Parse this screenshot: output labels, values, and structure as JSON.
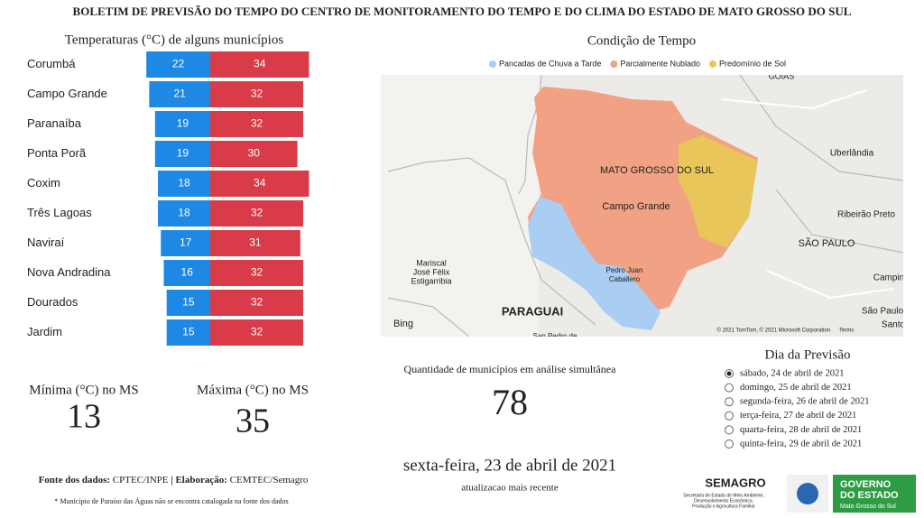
{
  "header": {
    "title": "BOLETIM DE PREVISÃO DO TEMPO DO CENTRO DE MONITORAMENTO DO TEMPO E DO CLIMA DO ESTADO DE MATO GROSSO DO SUL"
  },
  "chart_data": {
    "type": "butterfly-bar",
    "title": "Temperaturas (°C) de alguns municípios",
    "categories": [
      "Corumbá",
      "Campo Grande",
      "Paranaíba",
      "Ponta Porã",
      "Coxim",
      "Três Lagoas",
      "Naviraí",
      "Nova Andradina",
      "Dourados",
      "Jardim"
    ],
    "series": [
      {
        "color": "#1e88e5",
        "values": [
          22,
          21,
          19,
          19,
          18,
          18,
          17,
          16,
          15,
          15
        ]
      },
      {
        "color": "#d93b48",
        "values": [
          34,
          32,
          32,
          30,
          34,
          32,
          31,
          32,
          32,
          32
        ]
      }
    ]
  },
  "summary": {
    "min_label": "Mínima (°C) no MS",
    "min_value": 13,
    "max_label": "Máxima (°C) no MS",
    "max_value": 35
  },
  "map": {
    "title": "Condição de Tempo",
    "legend": [
      {
        "label": "Pancadas de Chuva a Tarde",
        "color": "#a9cdf3"
      },
      {
        "label": "Parcialmente Nublado",
        "color": "#f1a285"
      },
      {
        "label": "Predomínio de Sol",
        "color": "#e8c65a"
      }
    ],
    "labels": [
      "GOIÁS",
      "Uberlândia",
      "MATO GROSSO DO SUL",
      "Campo Grande",
      "Ribeirão Preto",
      "SÃO PAULO",
      "Mariscal",
      "José Félix",
      "Estigarribia",
      "Pedro Juan",
      "Caballero",
      "PARAGUAI",
      "Campin",
      "São Paulo",
      "Santo",
      "San Pedro de"
    ],
    "provider": "Bing",
    "attribution": "© 2021 TomTom, © 2021 Microsoft Corporation",
    "terms": "Terms"
  },
  "count": {
    "label": "Quantidade de municípios em análise simultânea",
    "value": 78
  },
  "update": {
    "date": "sexta-feira, 23 de abril de 2021",
    "note": "atualizacao mais recente"
  },
  "forecast": {
    "title": "Dia da Previsão",
    "options": [
      "sábado, 24 de abril de 2021",
      "domingo, 25 de abril de 2021",
      "segunda-feira, 26 de abril de 2021",
      "terça-feira, 27 de abril de 2021",
      "quarta-feira, 28 de abril de 2021",
      "quinta-feira, 29 de abril de 2021"
    ],
    "selected": 0
  },
  "footer": {
    "source_label": "Fonte dos dados:",
    "source": "CPTEC/INPE",
    "sep": "|",
    "elab_label": "Elaboração:",
    "elab": "CEMTEC/Semagro",
    "note": "* Município de Paraíso das Águas não se encontra catalogada na fonte dos dados"
  },
  "logos": {
    "semagro": "SEMAGRO",
    "semagro_sub": [
      "Secretaria de Estado de Meio Ambiente,",
      "Desenvolvimento Econômico,",
      "Produção e Agricultura Familiar"
    ],
    "governo": [
      "GOVERNO",
      "DO ESTADO",
      "Mato Grosso do Sul"
    ]
  }
}
